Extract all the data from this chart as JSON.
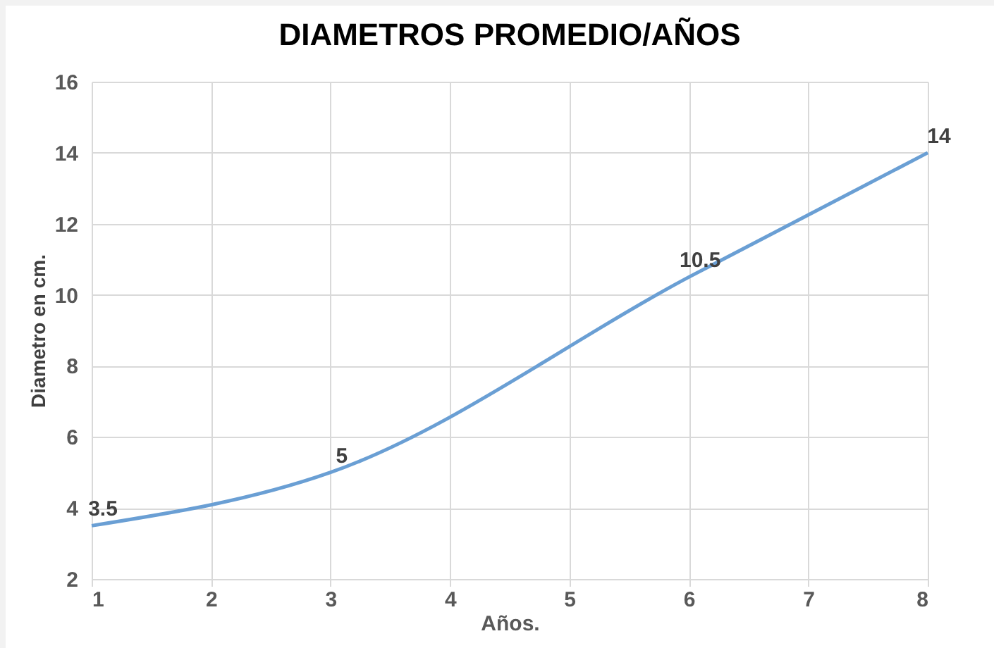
{
  "chart_data": {
    "type": "line",
    "title": "DIAMETROS PROMEDIO/AÑOS",
    "xlabel": "Años.",
    "ylabel": "Diametro en cm.",
    "x": [
      1,
      3,
      6,
      8
    ],
    "series": [
      {
        "color": "#6a9fd4",
        "values": [
          3.5,
          5,
          10.5,
          14
        ]
      }
    ],
    "xlim": [
      1,
      8
    ],
    "xticks": [
      1,
      2,
      3,
      4,
      5,
      6,
      7,
      8
    ],
    "ylim": [
      2,
      16
    ],
    "yticks": [
      2,
      4,
      6,
      8,
      10,
      12,
      14,
      16
    ],
    "grid": true,
    "data_labels": true,
    "marker": "none",
    "line_style": "solid",
    "legend": false
  }
}
